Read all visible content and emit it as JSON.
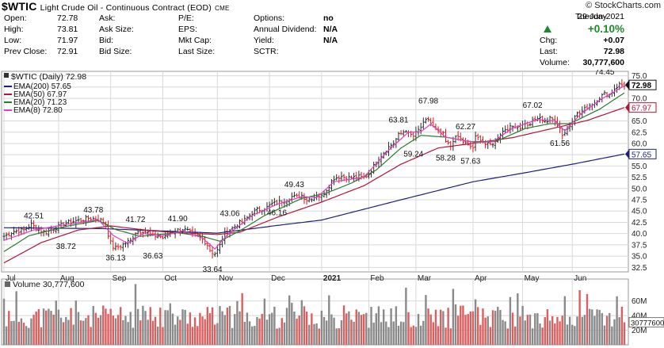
{
  "header": {
    "symbol": "$WTIC",
    "description": "Light Crude Oil - Continuous Contract (EOD)",
    "exchange": "CME",
    "brand": "© StockCharts.com"
  },
  "quote": {
    "rows": [
      [
        {
          "l": "Open:",
          "v": "72.78"
        },
        {
          "l": "Ask:",
          "v": ""
        },
        {
          "l": "P/E:",
          "v": ""
        },
        {
          "l": "Options:",
          "v": "no"
        }
      ],
      [
        {
          "l": "High:",
          "v": "73.81"
        },
        {
          "l": "Ask Size:",
          "v": ""
        },
        {
          "l": "EPS:",
          "v": ""
        },
        {
          "l": "Annual Dividend:",
          "v": "N/A"
        }
      ],
      [
        {
          "l": "Low:",
          "v": "71.97"
        },
        {
          "l": "Bid:",
          "v": ""
        },
        {
          "l": "Mkt Cap:",
          "v": ""
        },
        {
          "l": "Yield:",
          "v": "N/A"
        }
      ],
      [
        {
          "l": "Prev Close:",
          "v": "72.91"
        },
        {
          "l": "Bid Size:",
          "v": ""
        },
        {
          "l": "Last Size:",
          "v": ""
        },
        {
          "l": "SCTR:",
          "v": ""
        }
      ]
    ],
    "day": "Tuesday",
    "date": "29-Jun-2021",
    "change_pct": "+0.10%",
    "chg_label": "Chg:",
    "chg": "+0.07",
    "last_label": "Last:",
    "last": "72.98",
    "volume_label": "Volume:",
    "volume": "30,777,600"
  },
  "colors": {
    "up": "#1c8a2c",
    "bar_up": "#2b2b2b",
    "bar_down": "#d01e1e",
    "ema200": "#1f1f7a",
    "ema50": "#b0153a",
    "ema20": "#2d7a2d",
    "ema8": "#e040c0",
    "vol_up": "#8a8a8a",
    "vol_down": "#d96060",
    "grid": "#d8d8d8"
  },
  "chart_data": {
    "type": "line",
    "title": "$WTIC (Daily) 72.98",
    "legend_placement": "top-left",
    "grid": true,
    "ylim": [
      31.5,
      76.0
    ],
    "y_axis_side": "right",
    "y_ticks": [
      "32.5",
      "35.0",
      "37.5",
      "40.0",
      "42.5",
      "45.0",
      "47.5",
      "50.0",
      "52.5",
      "55.0",
      "57.5",
      "60.0",
      "62.5",
      "65.0",
      "67.5",
      "70.0",
      "72.5",
      "75.0"
    ],
    "x_axis_labels": [
      {
        "label": "Jul",
        "day": 0
      },
      {
        "label": "Aug",
        "day": 22
      },
      {
        "label": "Sep",
        "day": 43
      },
      {
        "label": "Oct",
        "day": 64
      },
      {
        "label": "Nov",
        "day": 86
      },
      {
        "label": "Dec",
        "day": 107
      },
      {
        "label": "2021",
        "day": 128,
        "bold": true
      },
      {
        "label": "Feb",
        "day": 147
      },
      {
        "label": "Mar",
        "day": 166
      },
      {
        "label": "Apr",
        "day": 189
      },
      {
        "label": "May",
        "day": 209
      },
      {
        "label": "Jun",
        "day": 229
      }
    ],
    "n_days": 251,
    "legend": [
      {
        "name": "EMA(200)",
        "last": "57.65",
        "key": "ema200"
      },
      {
        "name": "EMA(50)",
        "last": "67.97",
        "key": "ema50"
      },
      {
        "name": "EMA(20)",
        "last": "71.23",
        "key": "ema20"
      },
      {
        "name": "EMA(8)",
        "last": "72.80",
        "key": "ema8"
      }
    ],
    "price_anchor_closes": [
      [
        0,
        39.4
      ],
      [
        4,
        40.5
      ],
      [
        8,
        40.8
      ],
      [
        11,
        42.0
      ],
      [
        14,
        40.8
      ],
      [
        17,
        40.3
      ],
      [
        20,
        41.0
      ],
      [
        22,
        41.6
      ],
      [
        25,
        42.4
      ],
      [
        28,
        42.7
      ],
      [
        31,
        43.0
      ],
      [
        34,
        43.4
      ],
      [
        37,
        43.3
      ],
      [
        39,
        43.0
      ],
      [
        41,
        42.2
      ],
      [
        42,
        39.8
      ],
      [
        43,
        38.0
      ],
      [
        44,
        37.0
      ],
      [
        45,
        36.8
      ],
      [
        47,
        37.2
      ],
      [
        49,
        38.0
      ],
      [
        51,
        38.4
      ],
      [
        53,
        40.3
      ],
      [
        56,
        40.6
      ],
      [
        58,
        40.2
      ],
      [
        60,
        39.4
      ],
      [
        62,
        39.5
      ],
      [
        64,
        39.0
      ],
      [
        65,
        39.2
      ],
      [
        67,
        40.2
      ],
      [
        70,
        40.8
      ],
      [
        72,
        41.0
      ],
      [
        74,
        40.6
      ],
      [
        76,
        39.9
      ],
      [
        78,
        39.6
      ],
      [
        80,
        38.8
      ],
      [
        82,
        37.5
      ],
      [
        83,
        36.4
      ],
      [
        84,
        35.8
      ],
      [
        85,
        35.6
      ],
      [
        86,
        36.3
      ],
      [
        87,
        37.4
      ],
      [
        88,
        38.8
      ],
      [
        89,
        40.0
      ],
      [
        91,
        40.9
      ],
      [
        93,
        41.6
      ],
      [
        95,
        42.4
      ],
      [
        96,
        42.5
      ],
      [
        98,
        43.5
      ],
      [
        100,
        44.6
      ],
      [
        102,
        45.3
      ],
      [
        104,
        45.4
      ],
      [
        106,
        45.8
      ],
      [
        108,
        46.6
      ],
      [
        110,
        46.8
      ],
      [
        112,
        47.2
      ],
      [
        114,
        47.6
      ],
      [
        116,
        48.2
      ],
      [
        118,
        48.1
      ],
      [
        120,
        48.5
      ],
      [
        122,
        47.5
      ],
      [
        124,
        47.9
      ],
      [
        126,
        48.5
      ],
      [
        128,
        48.2
      ],
      [
        130,
        49.8
      ],
      [
        132,
        51.6
      ],
      [
        133,
        52.3
      ],
      [
        136,
        52.7
      ],
      [
        139,
        52.4
      ],
      [
        141,
        52.5
      ],
      [
        143,
        52.6
      ],
      [
        145,
        52.4
      ],
      [
        147,
        53.2
      ],
      [
        149,
        55.0
      ],
      [
        151,
        56.6
      ],
      [
        153,
        58.0
      ],
      [
        155,
        59.2
      ],
      [
        157,
        60.1
      ],
      [
        159,
        61.8
      ],
      [
        160,
        62.2
      ],
      [
        162,
        63.0
      ],
      [
        163,
        62.1
      ],
      [
        165,
        61.6
      ],
      [
        166,
        62.3
      ],
      [
        168,
        63.6
      ],
      [
        170,
        65.0
      ],
      [
        171,
        65.4
      ],
      [
        173,
        63.6
      ],
      [
        175,
        62.6
      ],
      [
        177,
        61.9
      ],
      [
        178,
        60.3
      ],
      [
        180,
        59.4
      ],
      [
        181,
        60.8
      ],
      [
        183,
        61.5
      ],
      [
        185,
        60.4
      ],
      [
        187,
        59.5
      ],
      [
        189,
        59.1
      ],
      [
        190,
        61.3
      ],
      [
        192,
        61.0
      ],
      [
        194,
        59.8
      ],
      [
        196,
        59.7
      ],
      [
        198,
        60.5
      ],
      [
        200,
        62.2
      ],
      [
        202,
        63.2
      ],
      [
        204,
        63.5
      ],
      [
        206,
        64.0
      ],
      [
        208,
        63.5
      ],
      [
        210,
        64.6
      ],
      [
        211,
        63.8
      ],
      [
        213,
        64.9
      ],
      [
        215,
        65.6
      ],
      [
        217,
        65.3
      ],
      [
        219,
        64.9
      ],
      [
        220,
        65.5
      ],
      [
        222,
        65.2
      ],
      [
        224,
        63.4
      ],
      [
        225,
        62.0
      ],
      [
        226,
        62.4
      ],
      [
        228,
        64.0
      ],
      [
        230,
        66.4
      ],
      [
        232,
        66.7
      ],
      [
        234,
        67.6
      ],
      [
        236,
        68.6
      ],
      [
        238,
        69.0
      ],
      [
        240,
        70.2
      ],
      [
        242,
        71.0
      ],
      [
        244,
        70.8
      ],
      [
        246,
        72.2
      ],
      [
        248,
        73.1
      ],
      [
        249,
        73.0
      ],
      [
        250,
        72.98
      ]
    ],
    "ema_values": {
      "ema200": [
        [
          0,
          41.3
        ],
        [
          40,
          41.1
        ],
        [
          86,
          40.1
        ],
        [
          110,
          41.8
        ],
        [
          128,
          43.0
        ],
        [
          160,
          47.5
        ],
        [
          189,
          51.5
        ],
        [
          210,
          53.5
        ],
        [
          230,
          55.5
        ],
        [
          250,
          57.65
        ]
      ],
      "ema50": [
        [
          0,
          33.5
        ],
        [
          15,
          38.0
        ],
        [
          30,
          40.8
        ],
        [
          43,
          41.7
        ],
        [
          60,
          40.6
        ],
        [
          70,
          40.2
        ],
        [
          86,
          39.8
        ],
        [
          95,
          40.3
        ],
        [
          110,
          43.6
        ],
        [
          128,
          47.0
        ],
        [
          145,
          50.6
        ],
        [
          160,
          55.4
        ],
        [
          175,
          59.0
        ],
        [
          190,
          60.1
        ],
        [
          205,
          61.3
        ],
        [
          220,
          63.2
        ],
        [
          235,
          65.1
        ],
        [
          250,
          67.97
        ]
      ],
      "ema20": [
        [
          0,
          36.0
        ],
        [
          10,
          39.5
        ],
        [
          25,
          41.6
        ],
        [
          38,
          42.9
        ],
        [
          45,
          40.9
        ],
        [
          55,
          39.4
        ],
        [
          70,
          40.2
        ],
        [
          80,
          39.4
        ],
        [
          87,
          38.3
        ],
        [
          95,
          40.6
        ],
        [
          105,
          44.0
        ],
        [
          120,
          47.8
        ],
        [
          130,
          49.0
        ],
        [
          140,
          51.2
        ],
        [
          150,
          54.1
        ],
        [
          160,
          59.0
        ],
        [
          168,
          61.8
        ],
        [
          178,
          61.4
        ],
        [
          188,
          60.4
        ],
        [
          198,
          60.4
        ],
        [
          210,
          63.3
        ],
        [
          220,
          64.4
        ],
        [
          228,
          64.4
        ],
        [
          240,
          67.6
        ],
        [
          250,
          71.23
        ]
      ],
      "ema8": [
        [
          0,
          38.5
        ],
        [
          12,
          40.8
        ],
        [
          25,
          42.0
        ],
        [
          38,
          43.1
        ],
        [
          44,
          39.6
        ],
        [
          50,
          37.8
        ],
        [
          56,
          40.0
        ],
        [
          64,
          39.5
        ],
        [
          72,
          40.6
        ],
        [
          80,
          39.0
        ],
        [
          85,
          36.6
        ],
        [
          90,
          39.7
        ],
        [
          100,
          44.0
        ],
        [
          110,
          46.5
        ],
        [
          120,
          48.2
        ],
        [
          126,
          48.0
        ],
        [
          133,
          51.5
        ],
        [
          145,
          52.5
        ],
        [
          155,
          58.5
        ],
        [
          163,
          62.5
        ],
        [
          168,
          62.6
        ],
        [
          172,
          64.3
        ],
        [
          178,
          61.4
        ],
        [
          184,
          60.8
        ],
        [
          190,
          60.2
        ],
        [
          197,
          60.4
        ],
        [
          205,
          63.4
        ],
        [
          215,
          65.3
        ],
        [
          222,
          65.0
        ],
        [
          226,
          62.8
        ],
        [
          232,
          66.3
        ],
        [
          240,
          69.6
        ],
        [
          250,
          72.8
        ]
      ]
    },
    "annotations": [
      {
        "text": "42.51",
        "day": 12,
        "price": 42.51,
        "pos": "above"
      },
      {
        "text": "38.72",
        "day": 25,
        "price": 38.72,
        "pos": "below"
      },
      {
        "text": "43.78",
        "day": 36,
        "price": 43.78,
        "pos": "above"
      },
      {
        "text": "36.13",
        "day": 45,
        "price": 36.13,
        "pos": "below"
      },
      {
        "text": "41.72",
        "day": 53,
        "price": 41.72,
        "pos": "above"
      },
      {
        "text": "36.63",
        "day": 60,
        "price": 36.63,
        "pos": "below"
      },
      {
        "text": "41.90",
        "day": 70,
        "price": 41.9,
        "pos": "above"
      },
      {
        "text": "33.64",
        "day": 84,
        "price": 33.64,
        "pos": "below"
      },
      {
        "text": "43.06",
        "day": 91,
        "price": 43.06,
        "pos": "above"
      },
      {
        "text": "46.16",
        "day": 110,
        "price": 46.16,
        "pos": "below"
      },
      {
        "text": "49.43",
        "day": 117,
        "price": 49.43,
        "pos": "above"
      },
      {
        "text": "63.81",
        "day": 159,
        "price": 63.81,
        "pos": "above"
      },
      {
        "text": "67.98",
        "day": 171,
        "price": 67.98,
        "pos": "above"
      },
      {
        "text": "59.24",
        "day": 165,
        "price": 59.24,
        "pos": "below"
      },
      {
        "text": "58.28",
        "day": 178,
        "price": 58.28,
        "pos": "below"
      },
      {
        "text": "62.27",
        "day": 186,
        "price": 62.27,
        "pos": "above"
      },
      {
        "text": "57.63",
        "day": 188,
        "price": 57.63,
        "pos": "below"
      },
      {
        "text": "67.02",
        "day": 213,
        "price": 67.02,
        "pos": "above"
      },
      {
        "text": "61.56",
        "day": 224,
        "price": 61.56,
        "pos": "below"
      },
      {
        "text": "74.45",
        "day": 242,
        "price": 74.45,
        "pos": "above"
      }
    ],
    "price_tags": [
      {
        "text": "72.98",
        "price": 72.98,
        "key": "last",
        "bold": true
      },
      {
        "text": "67.97",
        "price": 67.97,
        "key": "ema50"
      },
      {
        "text": "57.65",
        "price": 57.65,
        "key": "ema200"
      }
    ],
    "volume": {
      "title": "Volume 30,777,600",
      "ylim": [
        0,
        90
      ],
      "y_ticks": [
        "20M",
        "40M",
        "60M"
      ],
      "last_tag": "30777600",
      "last_millions": 30.8
    }
  }
}
